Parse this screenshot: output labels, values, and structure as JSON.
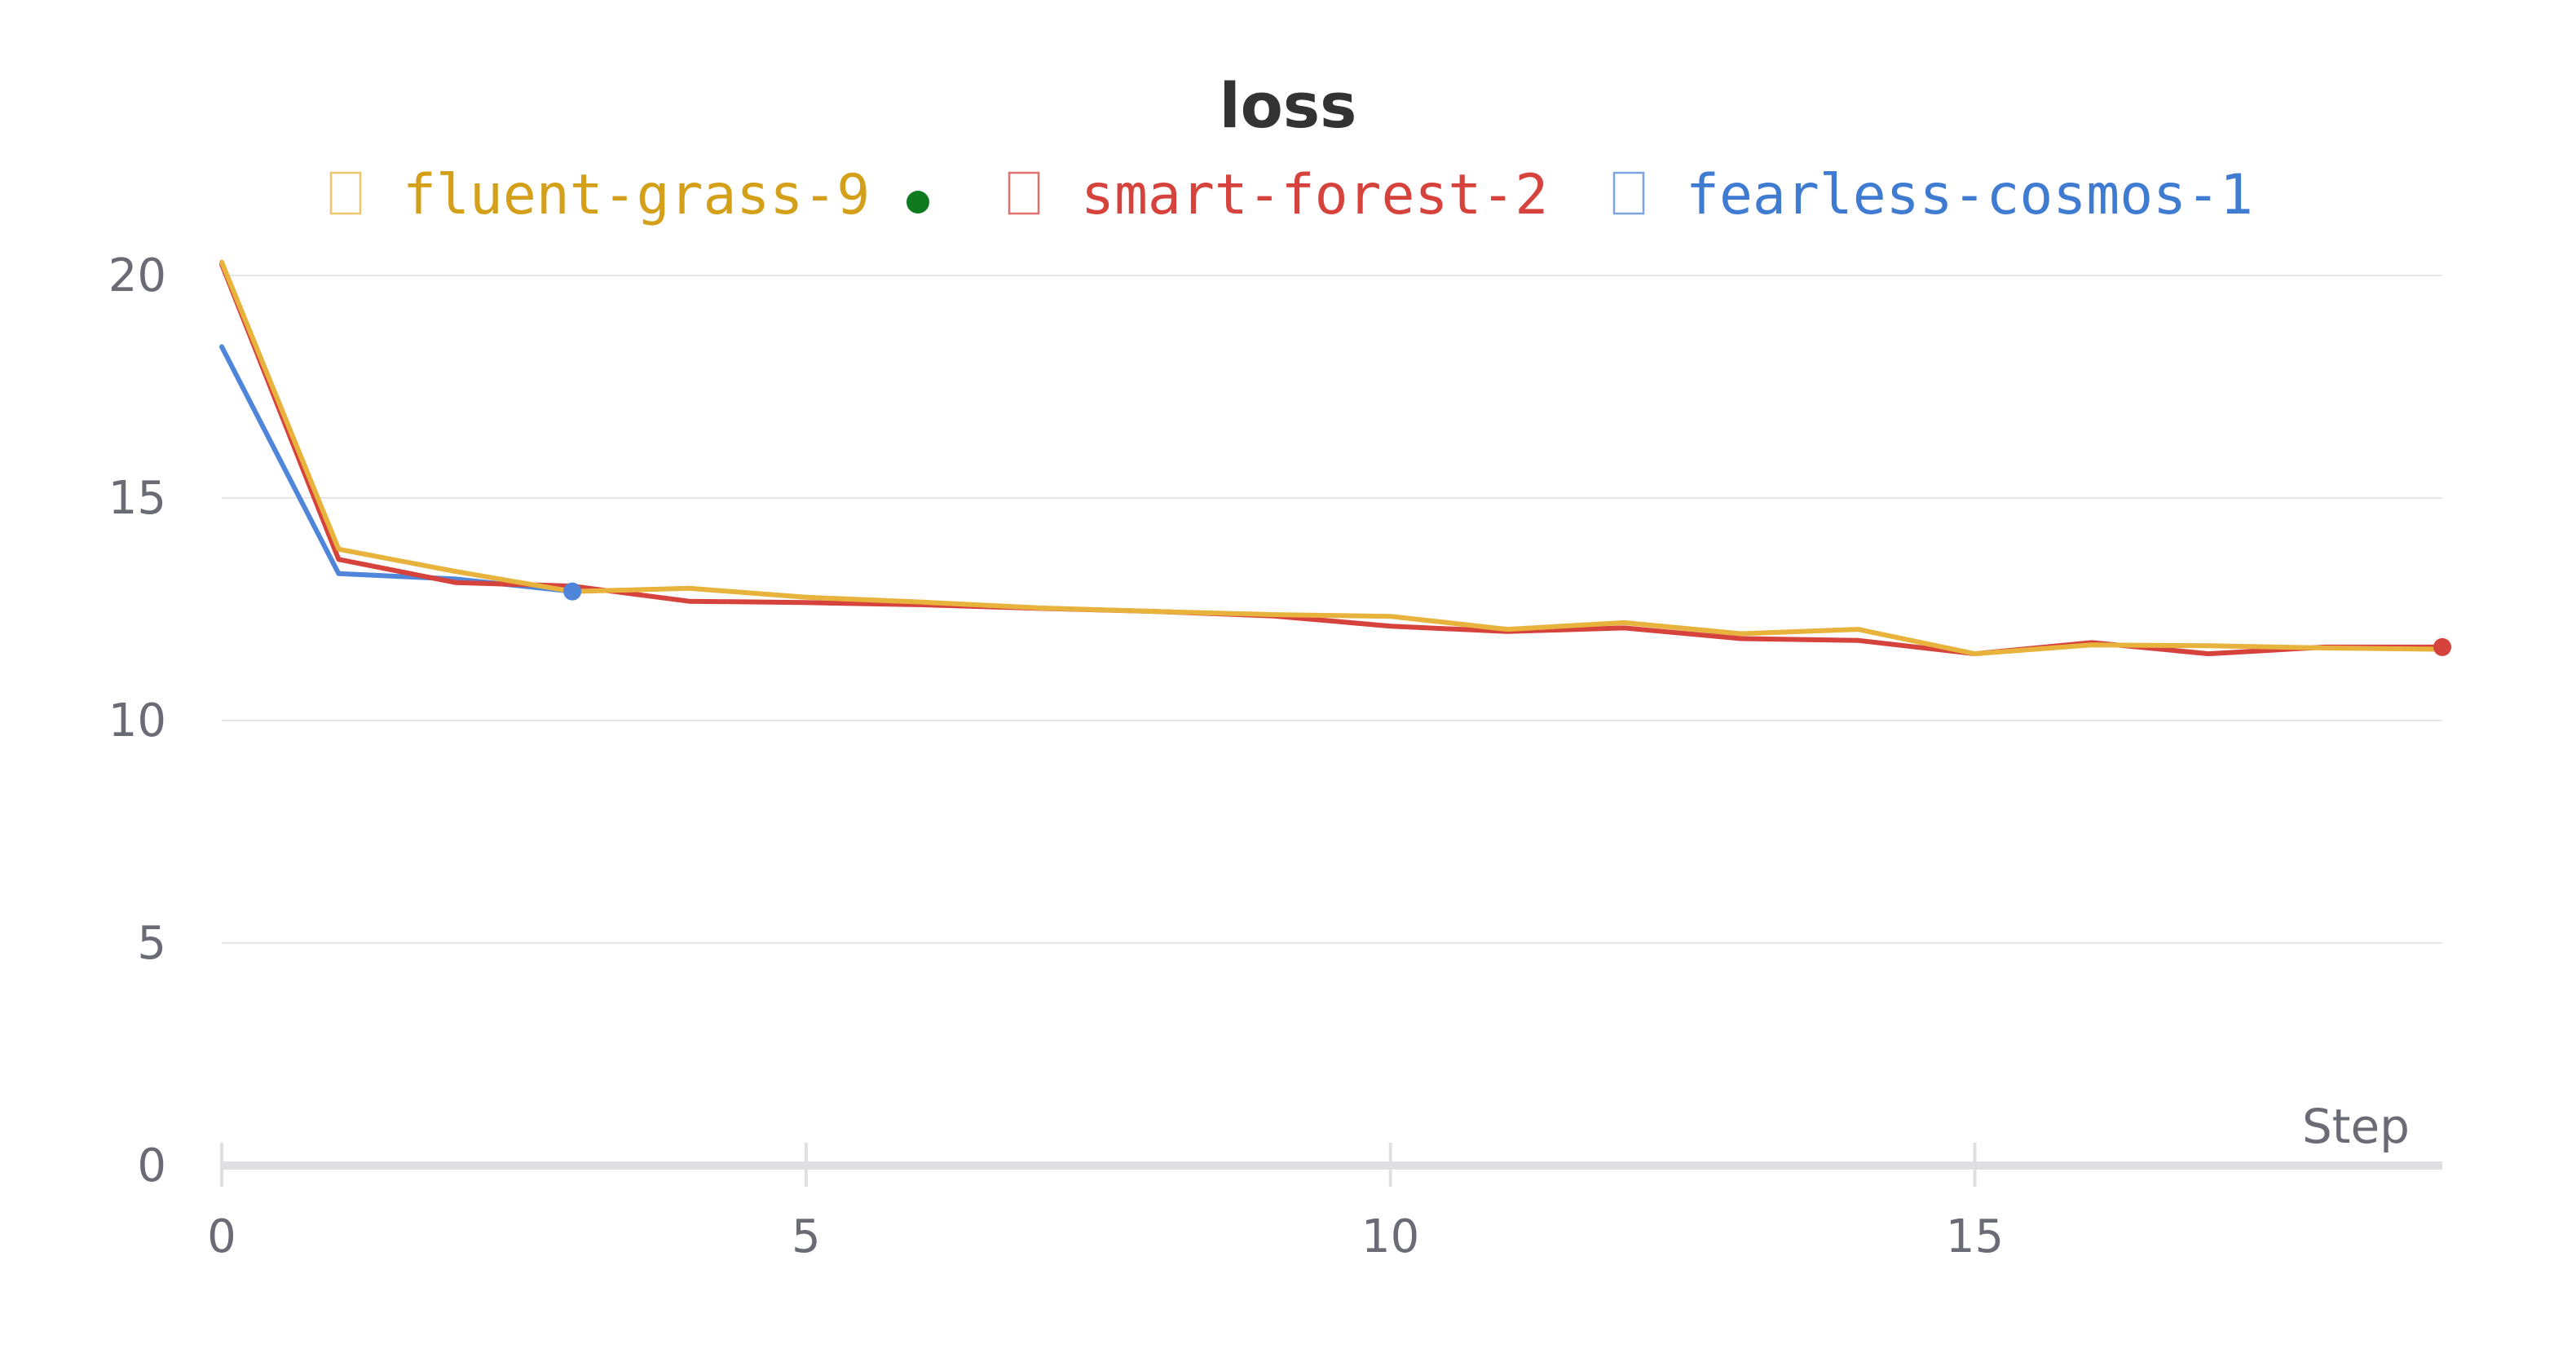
{
  "chart_data": {
    "type": "line",
    "title": "loss",
    "xlabel": "Step",
    "ylabel": "",
    "xlim": [
      0,
      19
    ],
    "ylim": [
      0,
      21
    ],
    "x_ticks": [
      "0",
      "5",
      "10",
      "15"
    ],
    "y_ticks": [
      "0",
      "5",
      "10",
      "15",
      "20"
    ],
    "grid": true,
    "legend_position": "top",
    "series": [
      {
        "name": "fluent-grass-9",
        "color": "#e8b33c",
        "text_color": "#d4a01a",
        "active": true,
        "x": [
          0,
          1,
          2,
          3,
          4,
          5,
          6,
          7,
          8,
          9,
          10,
          11,
          12,
          13,
          14,
          15,
          16,
          17,
          18,
          19
        ],
        "values": [
          20.3,
          13.85,
          13.35,
          12.9,
          12.97,
          12.77,
          12.66,
          12.53,
          12.45,
          12.38,
          12.34,
          12.05,
          12.2,
          11.95,
          12.05,
          11.5,
          11.7,
          11.68,
          11.63,
          11.6
        ]
      },
      {
        "name": "smart-forest-2",
        "color": "#d6423c",
        "text_color": "#d6423c",
        "active": false,
        "x": [
          0,
          1,
          2,
          3,
          4,
          5,
          6,
          7,
          8,
          9,
          10,
          11,
          12,
          13,
          14,
          15,
          16,
          17,
          18,
          19
        ],
        "values": [
          20.25,
          13.62,
          13.1,
          13.02,
          12.68,
          12.65,
          12.6,
          12.52,
          12.45,
          12.35,
          12.12,
          12.0,
          12.08,
          11.84,
          11.8,
          11.5,
          11.75,
          11.5,
          11.65,
          11.65
        ]
      },
      {
        "name": "fearless-cosmos-1",
        "color": "#4f86d9",
        "text_color": "#3f7bd1",
        "active": false,
        "x": [
          0,
          1,
          2,
          3
        ],
        "values": [
          18.4,
          13.3,
          13.18,
          12.9
        ]
      }
    ],
    "active_indicator_color": "#0f7a1f"
  }
}
